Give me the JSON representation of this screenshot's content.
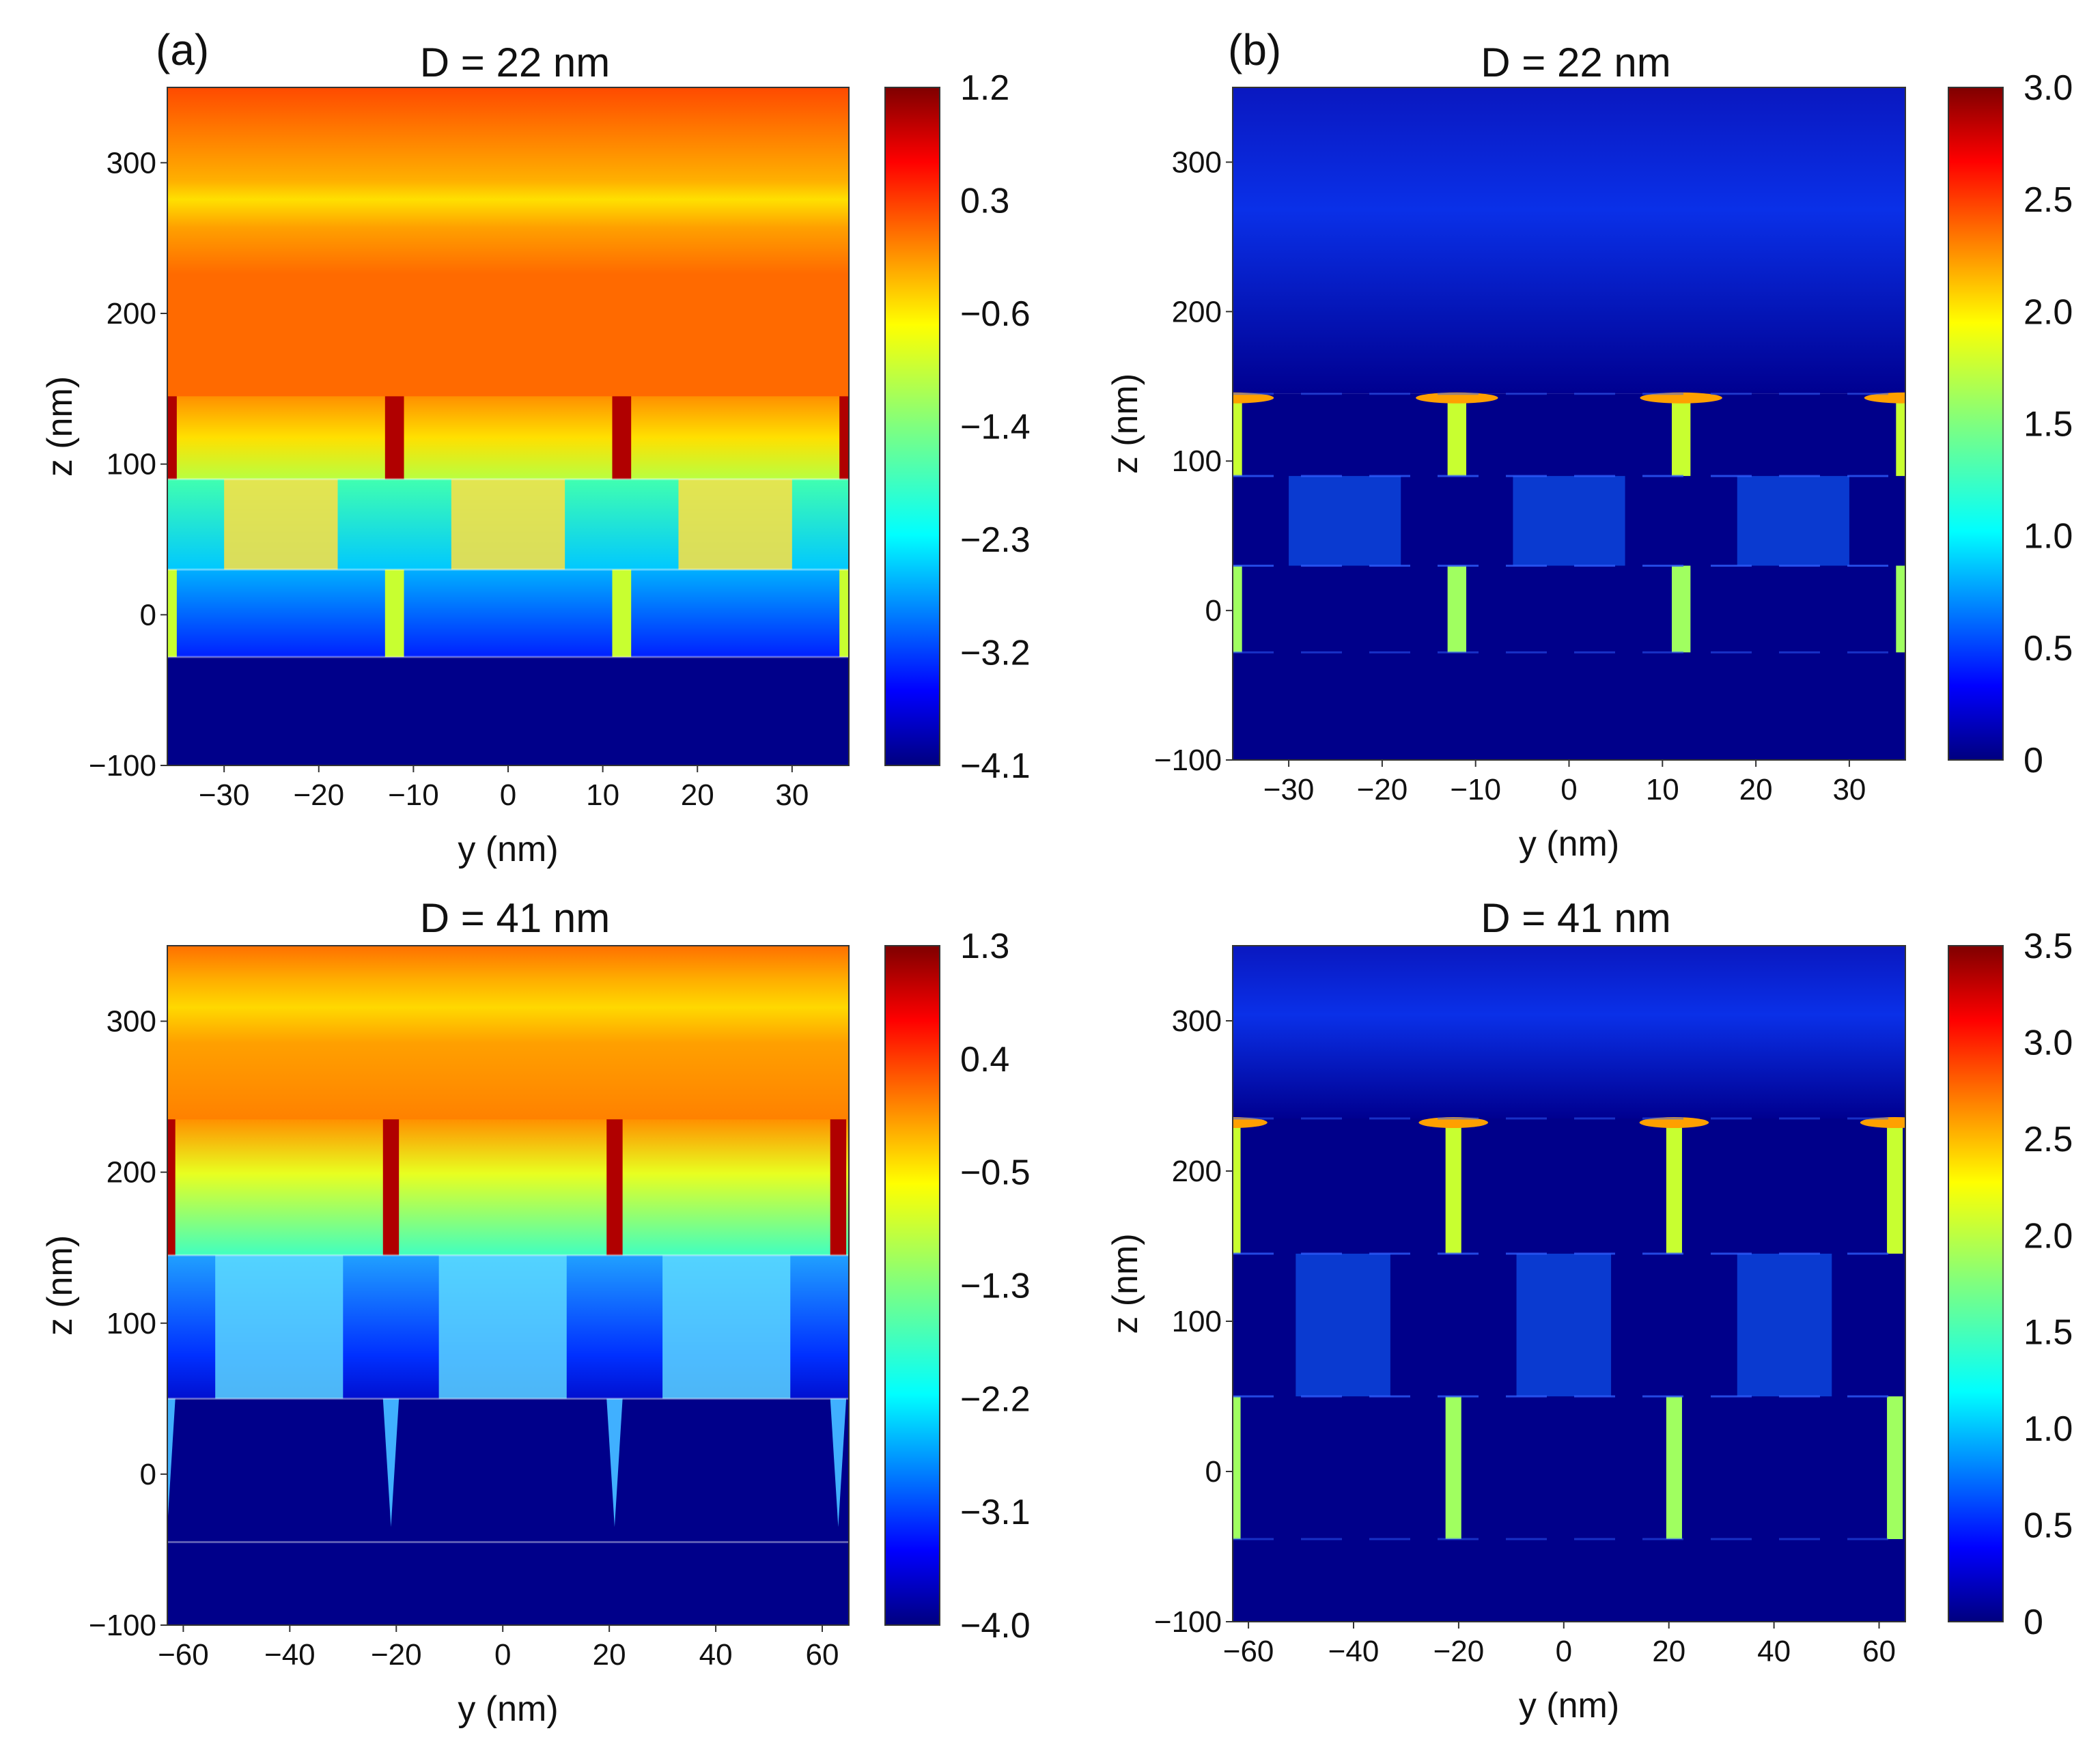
{
  "figure": {
    "panel_labels": [
      "(a)",
      "(b)"
    ]
  },
  "chart_data": [
    {
      "type": "heatmap",
      "panel": "(a)",
      "title": "D = 22 nm",
      "xlabel": "y (nm)",
      "ylabel": "z (nm)",
      "xlim": [
        -36,
        36
      ],
      "ylim": [
        -100,
        350
      ],
      "xticks": [
        -30,
        -20,
        -10,
        0,
        10,
        20,
        30
      ],
      "yticks": [
        -100,
        0,
        100,
        200,
        300
      ],
      "colorbar_ticks": [
        "1.2",
        "0.3",
        "−0.6",
        "−1.4",
        "−2.3",
        "−3.2",
        "−4.1"
      ],
      "colorbar_range": [
        -4.1,
        1.2
      ],
      "colormap": "jet",
      "structure": {
        "period": 24,
        "rod_width": 2,
        "layers": [
          [
            90,
            145
          ],
          [
            30,
            90
          ],
          [
            -28,
            30
          ]
        ]
      }
    },
    {
      "type": "heatmap",
      "panel": "(b)",
      "title": "D = 22 nm",
      "xlabel": "y (nm)",
      "ylabel": "z (nm)",
      "xlim": [
        -36,
        36
      ],
      "ylim": [
        -100,
        350
      ],
      "xticks": [
        -30,
        -20,
        -10,
        0,
        10,
        20,
        30
      ],
      "yticks": [
        -100,
        0,
        100,
        200,
        300
      ],
      "colorbar_ticks": [
        "3.0",
        "2.5",
        "2.0",
        "1.5",
        "1.0",
        "0.5",
        "0"
      ],
      "colorbar_range": [
        0,
        3.0
      ],
      "colormap": "jet",
      "structure": {
        "period": 24,
        "rod_width": 2,
        "layers": [
          [
            90,
            145
          ],
          [
            30,
            90
          ],
          [
            -28,
            30
          ]
        ]
      }
    },
    {
      "type": "heatmap",
      "panel": "(a)",
      "title": "D = 41 nm",
      "xlabel": "y (nm)",
      "ylabel": "z (nm)",
      "xlim": [
        -63,
        65
      ],
      "ylim": [
        -100,
        350
      ],
      "xticks": [
        -60,
        -40,
        -20,
        0,
        20,
        40,
        60
      ],
      "yticks": [
        -100,
        0,
        100,
        200,
        300
      ],
      "colorbar_ticks": [
        "1.3",
        "0.4",
        "−0.5",
        "−1.3",
        "−2.2",
        "−3.1",
        "−4.0"
      ],
      "colorbar_range": [
        -4.0,
        1.3
      ],
      "colormap": "jet",
      "structure": {
        "period": 42,
        "rod_width": 3,
        "layers": [
          [
            145,
            235
          ],
          [
            50,
            145
          ],
          [
            -45,
            50
          ]
        ]
      }
    },
    {
      "type": "heatmap",
      "panel": "(b)",
      "title": "D = 41 nm",
      "xlabel": "y (nm)",
      "ylabel": "z (nm)",
      "xlim": [
        -63,
        65
      ],
      "ylim": [
        -100,
        350
      ],
      "xticks": [
        -60,
        -40,
        -20,
        0,
        20,
        40,
        60
      ],
      "yticks": [
        -100,
        0,
        100,
        200,
        300
      ],
      "colorbar_ticks": [
        "3.5",
        "3.0",
        "2.5",
        "2.0",
        "1.5",
        "1.0",
        "0.5",
        "0"
      ],
      "colorbar_range": [
        0,
        3.5
      ],
      "colormap": "jet",
      "structure": {
        "period": 42,
        "rod_width": 3,
        "layers": [
          [
            145,
            235
          ],
          [
            50,
            145
          ],
          [
            -45,
            50
          ]
        ]
      }
    }
  ]
}
